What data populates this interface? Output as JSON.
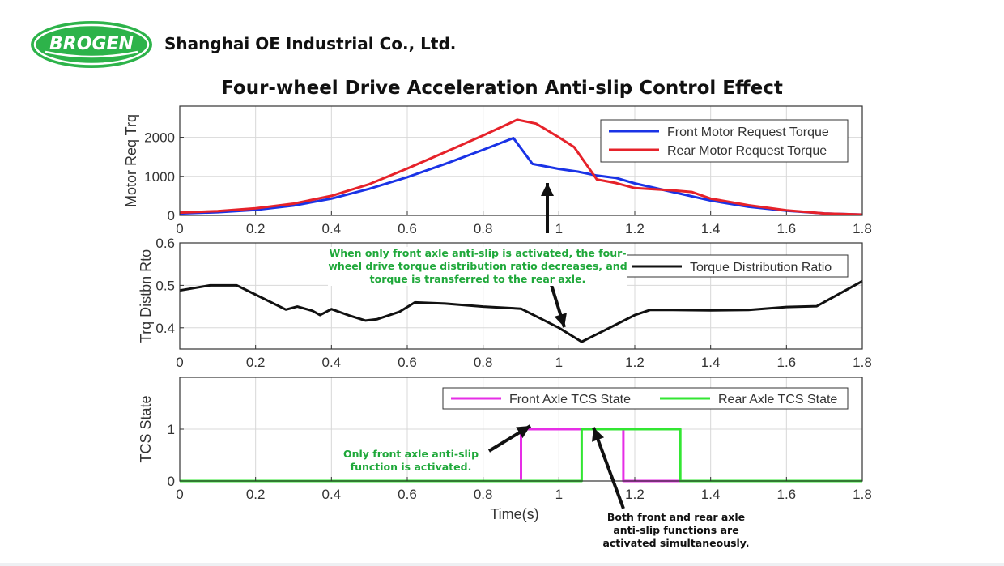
{
  "header": {
    "logo_text": "BROGEN",
    "company": "Shanghai OE Industrial Co., Ltd."
  },
  "page_title": "Four-wheel Drive Acceleration Anti-slip Control Effect",
  "colors": {
    "brand_green": "#2db34a",
    "front_torque": "#1a33e6",
    "rear_torque": "#e6222a",
    "ratio": "#111111",
    "front_tcs": "#e62ee6",
    "rear_tcs": "#33e633",
    "annotation_green": "#1fa83a"
  },
  "annotations": {
    "front_only_ratio": "When only front axle anti-slip is activated, the four-wheel drive torque distribution ratio decreases, and torque is transferred to the rear axle.",
    "front_only_tcs": "Only front axle anti-slip function is activated.",
    "both_tcs": "Both front and rear axle anti-slip functions are activated simultaneously."
  },
  "chart_data": [
    {
      "type": "line",
      "xlabel": "",
      "ylabel": "Motor Req Trq",
      "xlim": [
        0,
        1.8
      ],
      "ylim": [
        0,
        2800
      ],
      "xticks": [
        0,
        0.2,
        0.4,
        0.6,
        0.8,
        1,
        1.2,
        1.4,
        1.6,
        1.8
      ],
      "yticks": [
        0,
        1000,
        2000
      ],
      "grid": true,
      "legend_position": "top-right",
      "series": [
        {
          "name": "Front Motor Request Torque",
          "color": "#1a33e6",
          "points": [
            [
              0,
              50
            ],
            [
              0.1,
              80
            ],
            [
              0.2,
              140
            ],
            [
              0.3,
              250
            ],
            [
              0.4,
              430
            ],
            [
              0.5,
              680
            ],
            [
              0.6,
              980
            ],
            [
              0.7,
              1320
            ],
            [
              0.8,
              1680
            ],
            [
              0.88,
              1980
            ],
            [
              0.93,
              1320
            ],
            [
              1.0,
              1190
            ],
            [
              1.05,
              1120
            ],
            [
              1.1,
              1020
            ],
            [
              1.15,
              960
            ],
            [
              1.2,
              820
            ],
            [
              1.3,
              600
            ],
            [
              1.4,
              380
            ],
            [
              1.5,
              220
            ],
            [
              1.6,
              120
            ],
            [
              1.7,
              50
            ],
            [
              1.8,
              20
            ]
          ]
        },
        {
          "name": "Rear Motor Request Torque",
          "color": "#e6222a",
          "points": [
            [
              0,
              70
            ],
            [
              0.1,
              110
            ],
            [
              0.2,
              180
            ],
            [
              0.3,
              300
            ],
            [
              0.4,
              500
            ],
            [
              0.5,
              800
            ],
            [
              0.6,
              1200
            ],
            [
              0.7,
              1620
            ],
            [
              0.8,
              2050
            ],
            [
              0.89,
              2450
            ],
            [
              0.94,
              2350
            ],
            [
              1.0,
              2000
            ],
            [
              1.04,
              1750
            ],
            [
              1.1,
              920
            ],
            [
              1.15,
              830
            ],
            [
              1.2,
              700
            ],
            [
              1.3,
              640
            ],
            [
              1.35,
              600
            ],
            [
              1.4,
              430
            ],
            [
              1.5,
              260
            ],
            [
              1.6,
              130
            ],
            [
              1.7,
              50
            ],
            [
              1.8,
              20
            ]
          ]
        }
      ]
    },
    {
      "type": "line",
      "xlabel": "",
      "ylabel": "Trq Distbn Rto",
      "xlim": [
        0,
        1.8
      ],
      "ylim": [
        0.35,
        0.6
      ],
      "xticks": [
        0,
        0.2,
        0.4,
        0.6,
        0.8,
        1,
        1.2,
        1.4,
        1.6,
        1.8
      ],
      "yticks": [
        0.4,
        0.5,
        0.6
      ],
      "grid": true,
      "legend_position": "top-right",
      "series": [
        {
          "name": "Torque Distribution Ratio",
          "color": "#111111",
          "points": [
            [
              0,
              0.488
            ],
            [
              0.08,
              0.5
            ],
            [
              0.15,
              0.5
            ],
            [
              0.2,
              0.478
            ],
            [
              0.28,
              0.443
            ],
            [
              0.31,
              0.45
            ],
            [
              0.35,
              0.44
            ],
            [
              0.37,
              0.43
            ],
            [
              0.4,
              0.444
            ],
            [
              0.45,
              0.428
            ],
            [
              0.49,
              0.417
            ],
            [
              0.52,
              0.42
            ],
            [
              0.58,
              0.438
            ],
            [
              0.62,
              0.46
            ],
            [
              0.7,
              0.457
            ],
            [
              0.8,
              0.45
            ],
            [
              0.9,
              0.445
            ],
            [
              1.0,
              0.4
            ],
            [
              1.06,
              0.367
            ],
            [
              1.1,
              0.385
            ],
            [
              1.2,
              0.43
            ],
            [
              1.24,
              0.442
            ],
            [
              1.3,
              0.442
            ],
            [
              1.4,
              0.441
            ],
            [
              1.5,
              0.442
            ],
            [
              1.6,
              0.449
            ],
            [
              1.68,
              0.451
            ],
            [
              1.8,
              0.51
            ]
          ]
        }
      ]
    },
    {
      "type": "line",
      "xlabel": "Time(s)",
      "ylabel": "TCS State",
      "xlim": [
        0,
        1.8
      ],
      "ylim": [
        0,
        2
      ],
      "xticks": [
        0,
        0.2,
        0.4,
        0.6,
        0.8,
        1,
        1.2,
        1.4,
        1.6,
        1.8
      ],
      "yticks": [
        0,
        1
      ],
      "grid": true,
      "legend_position": "top-right",
      "legend_layout": "horizontal",
      "series": [
        {
          "name": "Front Axle TCS State",
          "color": "#e62ee6",
          "points": [
            [
              0,
              0
            ],
            [
              0.9,
              0
            ],
            [
              0.9,
              1
            ],
            [
              1.17,
              1
            ],
            [
              1.17,
              0
            ],
            [
              1.8,
              0
            ]
          ]
        },
        {
          "name": "Rear Axle TCS State",
          "color": "#33e633",
          "points": [
            [
              0,
              0
            ],
            [
              1.06,
              0
            ],
            [
              1.06,
              1
            ],
            [
              1.32,
              1
            ],
            [
              1.32,
              0
            ],
            [
              1.8,
              0
            ]
          ]
        }
      ]
    }
  ]
}
